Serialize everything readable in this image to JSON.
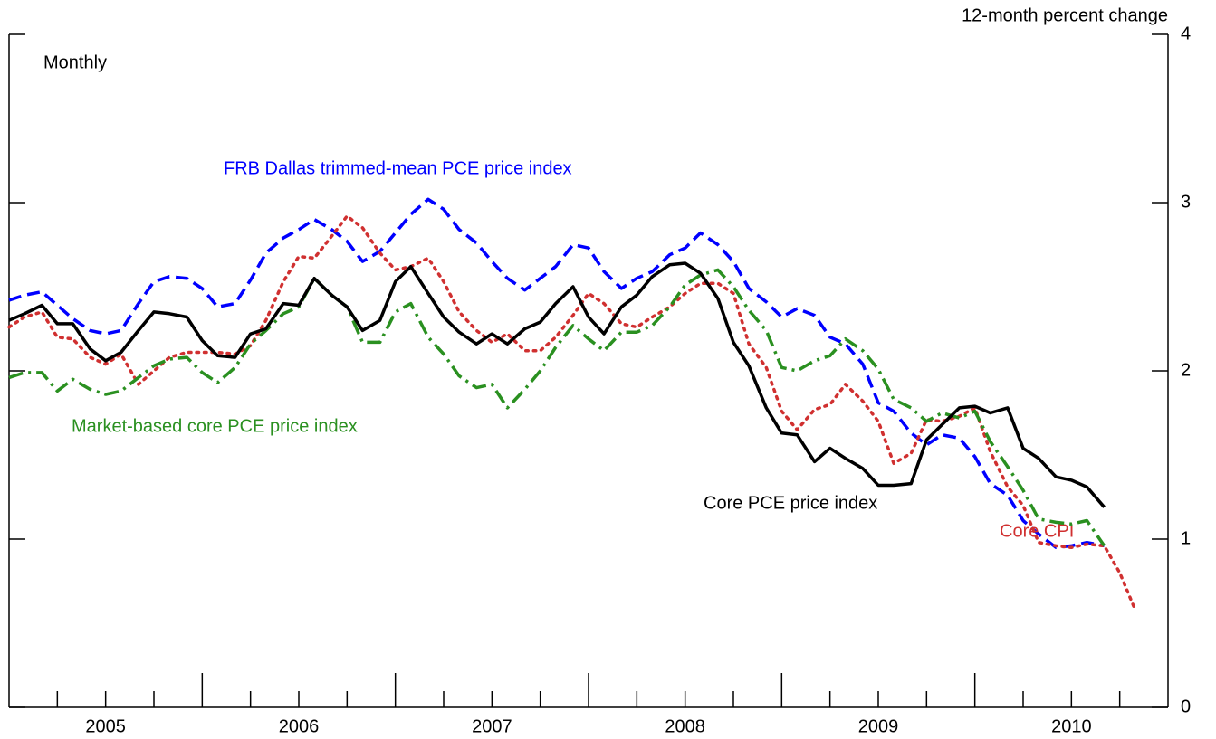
{
  "chart_data": {
    "type": "line",
    "subtitle": "Monthly",
    "y_axis_label": "12-month percent change",
    "xlim": [
      2004.5,
      2010.5
    ],
    "xticks": [
      {
        "value": 2005,
        "label": "2005"
      },
      {
        "value": 2006,
        "label": "2006"
      },
      {
        "value": 2007,
        "label": "2007"
      },
      {
        "value": 2008,
        "label": "2008"
      },
      {
        "value": 2009,
        "label": "2009"
      },
      {
        "value": 2010,
        "label": "2010"
      }
    ],
    "ylim": [
      0,
      4
    ],
    "yticks": [
      0,
      1,
      2,
      3,
      4
    ],
    "x": [
      2004.5,
      2004.58,
      2004.67,
      2004.75,
      2004.83,
      2004.92,
      2005.0,
      2005.08,
      2005.17,
      2005.25,
      2005.33,
      2005.42,
      2005.5,
      2005.58,
      2005.67,
      2005.75,
      2005.83,
      2005.92,
      2006.0,
      2006.08,
      2006.17,
      2006.25,
      2006.33,
      2006.42,
      2006.5,
      2006.58,
      2006.67,
      2006.75,
      2006.83,
      2006.92,
      2007.0,
      2007.08,
      2007.17,
      2007.25,
      2007.33,
      2007.42,
      2007.5,
      2007.58,
      2007.67,
      2007.75,
      2007.83,
      2007.92,
      2008.0,
      2008.08,
      2008.17,
      2008.25,
      2008.33,
      2008.42,
      2008.5,
      2008.58,
      2008.67,
      2008.75,
      2008.83,
      2008.92,
      2009.0,
      2009.08,
      2009.17,
      2009.25,
      2009.33,
      2009.42,
      2009.5,
      2009.58,
      2009.67,
      2009.75,
      2009.83,
      2009.92,
      2010.0,
      2010.08,
      2010.17,
      2010.25,
      2010.33
    ],
    "series": [
      {
        "name": "FRB Dallas trimmed-mean PCE price index",
        "color": "#0000ff",
        "dash": "dashed",
        "values": [
          2.42,
          2.45,
          2.47,
          2.39,
          2.31,
          2.24,
          2.22,
          2.24,
          2.4,
          2.53,
          2.56,
          2.55,
          2.49,
          2.38,
          2.4,
          2.54,
          2.7,
          2.79,
          2.84,
          2.9,
          2.84,
          2.77,
          2.65,
          2.71,
          2.82,
          2.93,
          3.02,
          2.96,
          2.84,
          2.76,
          2.65,
          2.55,
          2.48,
          2.55,
          2.62,
          2.75,
          2.73,
          2.59,
          2.49,
          2.55,
          2.59,
          2.69,
          2.73,
          2.82,
          2.75,
          2.65,
          2.49,
          2.41,
          2.32,
          2.37,
          2.33,
          2.2,
          2.16,
          2.04,
          1.81,
          1.76,
          1.63,
          1.56,
          1.62,
          1.6,
          1.49,
          1.33,
          1.26,
          1.11,
          1.03,
          0.95,
          0.96,
          0.98,
          0.96,
          null,
          null
        ]
      },
      {
        "name": "Core CPI",
        "color": "#d03030",
        "dash": "dotted",
        "values": [
          2.26,
          2.32,
          2.35,
          2.2,
          2.19,
          2.08,
          2.04,
          2.1,
          1.92,
          2.0,
          2.08,
          2.11,
          2.11,
          2.11,
          2.1,
          2.15,
          2.3,
          2.53,
          2.68,
          2.67,
          2.8,
          2.92,
          2.85,
          2.7,
          2.6,
          2.62,
          2.67,
          2.53,
          2.35,
          2.24,
          2.17,
          2.22,
          2.12,
          2.12,
          2.2,
          2.33,
          2.46,
          2.4,
          2.28,
          2.26,
          2.32,
          2.38,
          2.46,
          2.52,
          2.52,
          2.46,
          2.16,
          2.02,
          1.76,
          1.65,
          1.77,
          1.8,
          1.92,
          1.82,
          1.7,
          1.45,
          1.51,
          1.71,
          1.7,
          1.73,
          1.78,
          1.52,
          1.31,
          1.2,
          0.98,
          0.96,
          0.95,
          0.97,
          0.96,
          0.8,
          0.58
        ]
      },
      {
        "name": "Market-based core PCE price index",
        "color": "#2a9020",
        "dash": "dashdot",
        "values": [
          1.96,
          1.99,
          1.99,
          1.88,
          1.95,
          1.89,
          1.86,
          1.88,
          1.96,
          2.03,
          2.07,
          2.08,
          1.99,
          1.93,
          2.02,
          2.16,
          2.24,
          2.34,
          2.38,
          2.55,
          2.45,
          2.38,
          2.17,
          2.17,
          2.35,
          2.4,
          2.2,
          2.1,
          1.97,
          1.9,
          1.92,
          1.78,
          1.89,
          2.0,
          2.14,
          2.27,
          2.19,
          2.12,
          2.23,
          2.23,
          2.27,
          2.38,
          2.51,
          2.57,
          2.6,
          2.5,
          2.36,
          2.24,
          2.02,
          2.0,
          2.06,
          2.09,
          2.19,
          2.12,
          2.01,
          1.83,
          1.78,
          1.7,
          1.75,
          1.72,
          1.76,
          1.58,
          1.43,
          1.29,
          1.12,
          1.1,
          1.09,
          1.11,
          0.96,
          null,
          null
        ]
      },
      {
        "name": "Core PCE price index",
        "color": "#000000",
        "dash": "solid",
        "values": [
          2.3,
          2.34,
          2.39,
          2.28,
          2.28,
          2.13,
          2.06,
          2.11,
          2.24,
          2.35,
          2.34,
          2.32,
          2.18,
          2.09,
          2.08,
          2.22,
          2.25,
          2.4,
          2.39,
          2.55,
          2.45,
          2.38,
          2.24,
          2.3,
          2.53,
          2.62,
          2.46,
          2.32,
          2.23,
          2.16,
          2.22,
          2.16,
          2.25,
          2.29,
          2.4,
          2.5,
          2.32,
          2.22,
          2.38,
          2.45,
          2.56,
          2.63,
          2.64,
          2.58,
          2.43,
          2.17,
          2.03,
          1.78,
          1.63,
          1.62,
          1.46,
          1.54,
          1.48,
          1.42,
          1.32,
          1.32,
          1.33,
          1.59,
          1.68,
          1.78,
          1.79,
          1.75,
          1.78,
          1.54,
          1.48,
          1.37,
          1.35,
          1.31,
          1.19,
          null,
          null
        ]
      }
    ]
  }
}
